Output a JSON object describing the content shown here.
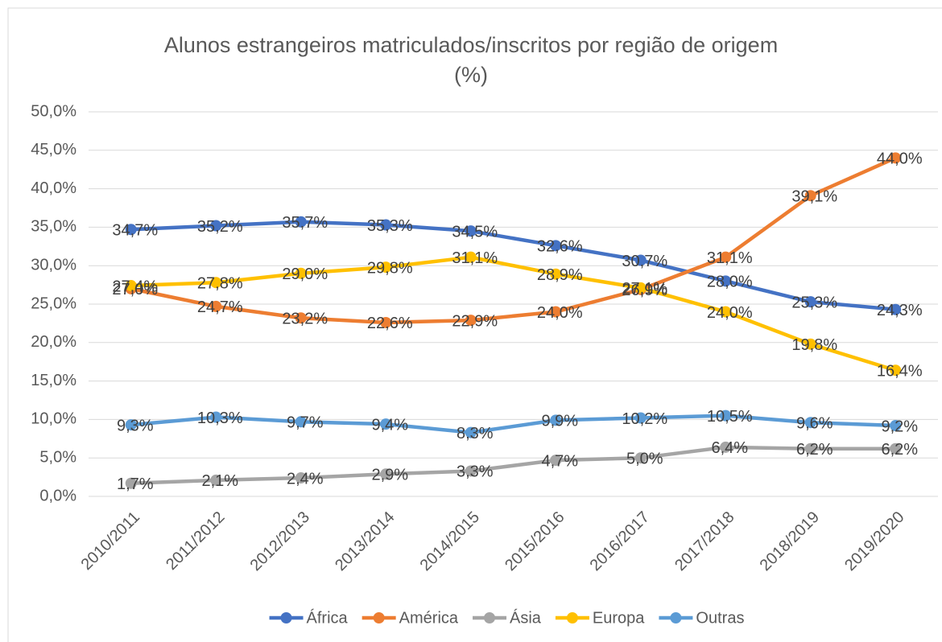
{
  "chart_data": {
    "type": "line",
    "title": "Alunos estrangeiros matriculados/inscritos por região de origem (%)",
    "categories": [
      "2010/2011",
      "2011/2012",
      "2012/2013",
      "2013/2014",
      "2014/2015",
      "2015/2016",
      "2016/2017",
      "2017/2018",
      "2018/2019",
      "2019/2020"
    ],
    "series": [
      {
        "name": "África",
        "color": "#4472c4",
        "values": [
          34.7,
          35.2,
          35.7,
          35.3,
          34.5,
          32.6,
          30.7,
          28.0,
          25.3,
          24.3
        ],
        "value_labels": [
          "34,7%",
          "35,2%",
          "35,7%",
          "35,3%",
          "34,5%",
          "32,6%",
          "30,7%",
          "28,0%",
          "25,3%",
          "24,3%"
        ]
      },
      {
        "name": "América",
        "color": "#ed7d31",
        "values": [
          27.0,
          24.7,
          23.2,
          22.6,
          22.9,
          24.0,
          26.9,
          31.1,
          39.1,
          44.0
        ],
        "value_labels": [
          "27,0%",
          "24,7%",
          "23,2%",
          "22,6%",
          "22,9%",
          "24,0%",
          "26,9%",
          "31,1%",
          "39,1%",
          "44,0%"
        ]
      },
      {
        "name": "Ásia",
        "color": "#a5a5a5",
        "values": [
          1.7,
          2.1,
          2.4,
          2.9,
          3.3,
          4.7,
          5.0,
          6.4,
          6.2,
          6.2
        ],
        "value_labels": [
          "1,7%",
          "2,1%",
          "2,4%",
          "2,9%",
          "3,3%",
          "4,7%",
          "5,0%",
          "6,4%",
          "6,2%",
          "6,2%"
        ]
      },
      {
        "name": "Europa",
        "color": "#ffc000",
        "values": [
          27.4,
          27.8,
          29.0,
          29.8,
          31.1,
          28.9,
          27.1,
          24.0,
          19.8,
          16.4
        ],
        "value_labels": [
          "27,4%",
          "27,8%",
          "29,0%",
          "29,8%",
          "31,1%",
          "28,9%",
          "27,1%",
          "24,0%",
          "19,8%",
          "16,4%"
        ]
      },
      {
        "name": "Outras",
        "color": "#5b9bd5",
        "values": [
          9.3,
          10.3,
          9.7,
          9.4,
          8.3,
          9.9,
          10.2,
          10.5,
          9.6,
          9.2
        ],
        "value_labels": [
          "9,3%",
          "10,3%",
          "9,7%",
          "9,4%",
          "8,3%",
          "9,9%",
          "10,2%",
          "10,5%",
          "9,6%",
          "9,2%"
        ]
      }
    ],
    "ylim": [
      0,
      50
    ],
    "yticks": [
      {
        "value": 0,
        "label": "0,0%"
      },
      {
        "value": 5,
        "label": "5,0%"
      },
      {
        "value": 10,
        "label": "10,0%"
      },
      {
        "value": 15,
        "label": "15,0%"
      },
      {
        "value": 20,
        "label": "20,0%"
      },
      {
        "value": 25,
        "label": "25,0%"
      },
      {
        "value": 30,
        "label": "30,0%"
      },
      {
        "value": 35,
        "label": "35,0%"
      },
      {
        "value": 40,
        "label": "40,0%"
      },
      {
        "value": 45,
        "label": "45,0%"
      },
      {
        "value": 50,
        "label": "50,0%"
      }
    ],
    "grid": true,
    "legend": "bottom"
  }
}
